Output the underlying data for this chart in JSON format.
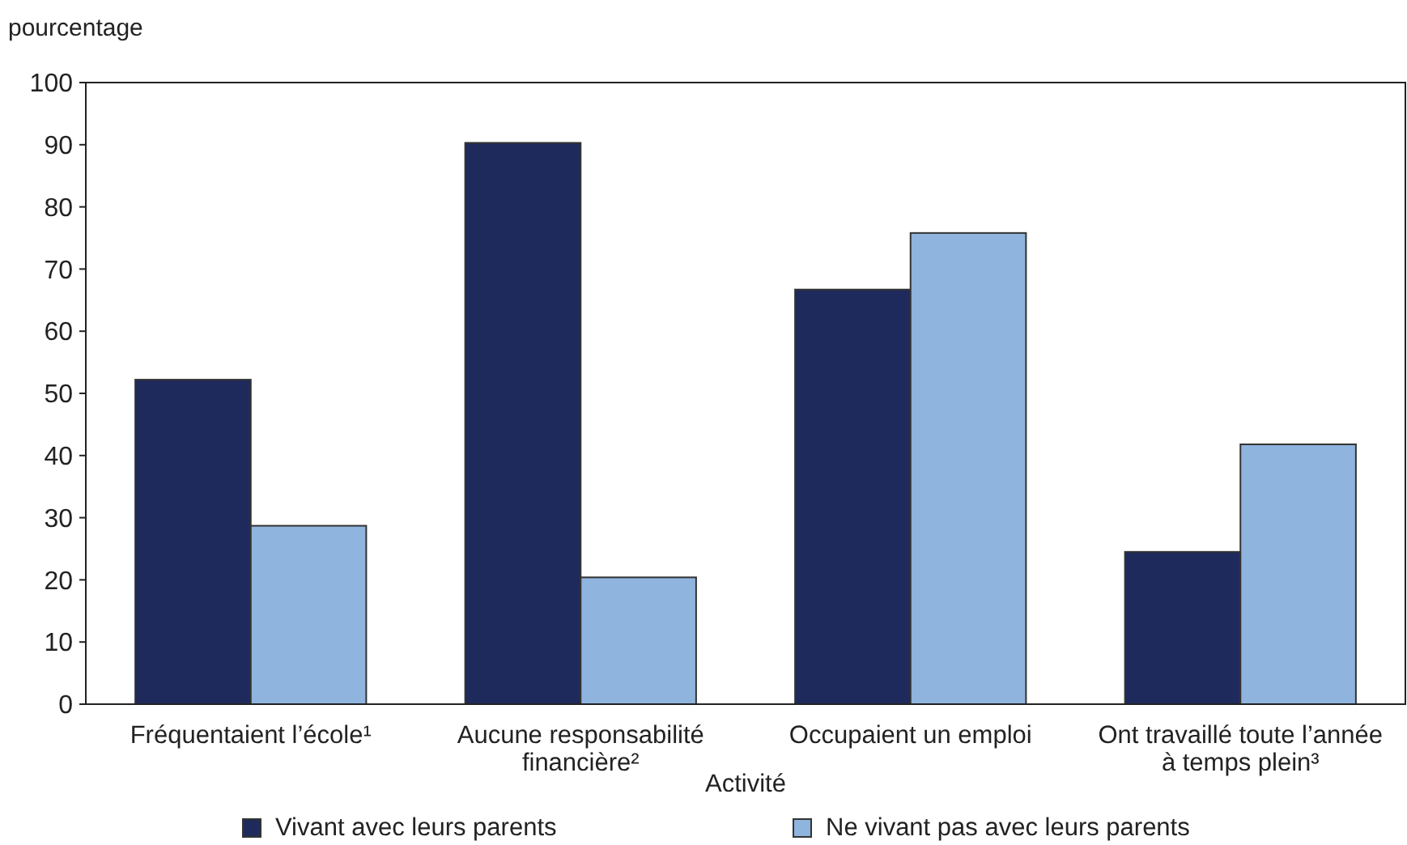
{
  "chart_data": {
    "type": "bar",
    "ylabel": "pourcentage",
    "xlabel": "Activité",
    "categories": [
      "Fréquentaient l’école¹",
      "Aucune responsabilité financière²",
      "Occupaient un emploi",
      "Ont travaillé toute l’année à temps plein³"
    ],
    "series": [
      {
        "name": "Vivant avec leurs parents",
        "color": "#1f2a5c",
        "values": [
          52.2,
          90.3,
          66.7,
          24.5
        ]
      },
      {
        "name": "Ne vivant pas avec leurs parents",
        "color": "#8fb4dd",
        "values": [
          28.7,
          20.4,
          75.8,
          41.8
        ]
      }
    ],
    "ylim": [
      0,
      100
    ],
    "yticks": [
      0,
      10,
      20,
      30,
      40,
      50,
      60,
      70,
      80,
      90,
      100
    ],
    "grid": false,
    "legend": "bottom"
  }
}
